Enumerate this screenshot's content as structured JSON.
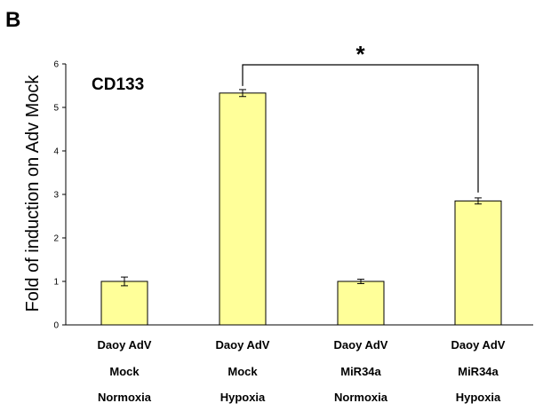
{
  "panel_label": "B",
  "colors": {
    "bar_fill": "#ffff99",
    "bar_stroke": "#000000"
  },
  "chart_data": {
    "type": "bar",
    "title": "",
    "annotation": "CD133",
    "xlabel": "",
    "ylabel": "Fold of induction on Adv Mock",
    "ylim": [
      0,
      6
    ],
    "yticks": [
      "0",
      "1",
      "2",
      "3",
      "4",
      "5",
      "6"
    ],
    "categories": [
      {
        "lines": [
          "Daoy AdV",
          "Mock",
          "Normoxia"
        ]
      },
      {
        "lines": [
          "Daoy AdV",
          "Mock",
          "Hypoxia"
        ]
      },
      {
        "lines": [
          "Daoy AdV",
          "MiR34a",
          "Normoxia"
        ]
      },
      {
        "lines": [
          "Daoy AdV",
          "MiR34a",
          "Hypoxia"
        ]
      }
    ],
    "values": [
      1.0,
      5.33,
      1.0,
      2.85
    ],
    "errors": [
      0.1,
      0.08,
      0.05,
      0.07
    ],
    "significance": {
      "between": [
        1,
        3
      ],
      "label": "*"
    },
    "grid": false
  }
}
